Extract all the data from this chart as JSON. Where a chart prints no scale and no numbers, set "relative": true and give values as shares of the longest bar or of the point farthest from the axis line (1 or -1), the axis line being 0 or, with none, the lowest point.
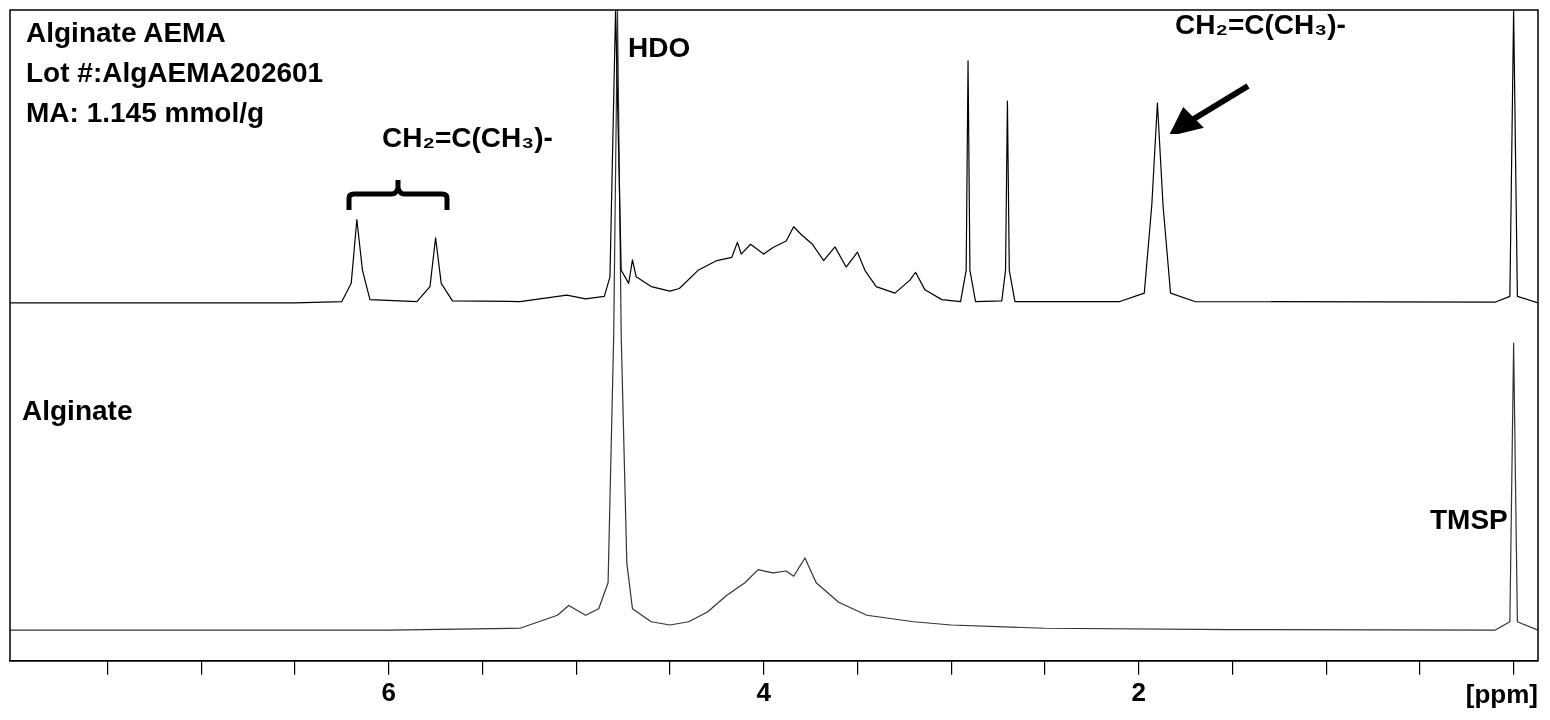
{
  "chart_data": {
    "type": "line",
    "relative": true,
    "xlabel": "[ppm]",
    "xlim": [
      8.02,
      -0.13
    ],
    "xticks": [
      {
        "value": 7.5,
        "label": null
      },
      {
        "value": 7,
        "label": null
      },
      {
        "value": 6.5,
        "label": null
      },
      6,
      {
        "value": 5.5,
        "label": null
      },
      {
        "value": 5,
        "label": null
      },
      {
        "value": 4.5,
        "label": null
      },
      4,
      {
        "value": 3.5,
        "label": null
      },
      {
        "value": 3,
        "label": null
      },
      {
        "value": 2.5,
        "label": null
      },
      2,
      {
        "value": 1.5,
        "label": null
      },
      {
        "value": 1,
        "label": null
      },
      {
        "value": 0.5,
        "label": null
      },
      {
        "value": 0,
        "label": null
      }
    ],
    "grid": false,
    "legend": false,
    "tick_labels": "x",
    "marker": "none",
    "line_style": "solid",
    "series": [
      {
        "color": "#000000",
        "x": [
          8.02,
          6.5,
          6.25,
          6.2,
          6.17,
          6.14,
          6.1,
          5.85,
          5.78,
          5.75,
          5.72,
          5.66,
          5.3,
          5.05,
          4.95,
          4.85,
          4.82,
          4.79,
          4.76,
          4.72,
          4.7,
          4.68,
          4.6,
          4.5,
          4.45,
          4.35,
          4.25,
          4.17,
          4.14,
          4.12,
          4.07,
          4.0,
          3.95,
          3.88,
          3.84,
          3.8,
          3.74,
          3.68,
          3.62,
          3.56,
          3.5,
          3.46,
          3.4,
          3.3,
          3.22,
          3.19,
          3.14,
          3.05,
          2.95,
          2.92,
          2.91,
          2.9,
          2.87,
          2.73,
          2.71,
          2.7,
          2.69,
          2.66,
          2.1,
          1.97,
          1.93,
          1.9,
          1.87,
          1.83,
          1.7,
          0.1,
          0.02,
          0.0,
          -0.02,
          -0.13
        ],
        "values": [
          0.55,
          0.55,
          0.552,
          0.58,
          0.678,
          0.6,
          0.555,
          0.552,
          0.575,
          0.65,
          0.58,
          0.553,
          0.552,
          0.562,
          0.556,
          0.56,
          0.59,
          1.0,
          0.6,
          0.58,
          0.616,
          0.59,
          0.575,
          0.568,
          0.572,
          0.6,
          0.615,
          0.62,
          0.643,
          0.625,
          0.64,
          0.625,
          0.635,
          0.645,
          0.667,
          0.655,
          0.64,
          0.615,
          0.636,
          0.605,
          0.628,
          0.6,
          0.575,
          0.565,
          0.585,
          0.597,
          0.57,
          0.555,
          0.552,
          0.6,
          0.922,
          0.6,
          0.552,
          0.553,
          0.6,
          0.86,
          0.6,
          0.552,
          0.552,
          0.565,
          0.7,
          0.857,
          0.7,
          0.565,
          0.552,
          0.551,
          0.56,
          1.0,
          0.56,
          0.55
        ]
      },
      {
        "color": "#333333",
        "x": [
          8.02,
          6.0,
          5.3,
          5.1,
          5.04,
          4.95,
          4.88,
          4.83,
          4.8,
          4.78,
          4.76,
          4.73,
          4.7,
          4.6,
          4.5,
          4.4,
          4.3,
          4.2,
          4.1,
          4.03,
          3.95,
          3.88,
          3.84,
          3.78,
          3.72,
          3.6,
          3.45,
          3.2,
          3.0,
          2.5,
          1.5,
          0.1,
          0.02,
          0.0,
          -0.02,
          -0.13
        ],
        "values": [
          0.047,
          0.047,
          0.05,
          0.07,
          0.085,
          0.07,
          0.08,
          0.12,
          0.5,
          1.0,
          0.5,
          0.15,
          0.08,
          0.06,
          0.055,
          0.06,
          0.075,
          0.1,
          0.12,
          0.14,
          0.135,
          0.138,
          0.13,
          0.158,
          0.12,
          0.09,
          0.07,
          0.06,
          0.055,
          0.05,
          0.048,
          0.047,
          0.06,
          0.488,
          0.06,
          0.047
        ]
      }
    ],
    "annotations": [
      "Alginate AEMA",
      "Lot #:AlgAEMA202601",
      "MA: 1.145 mmol/g",
      "CH₂=C(CH₃)-",
      "HDO",
      "CH₂=C(CH₃)-",
      "Alginate",
      "TMSP"
    ]
  }
}
